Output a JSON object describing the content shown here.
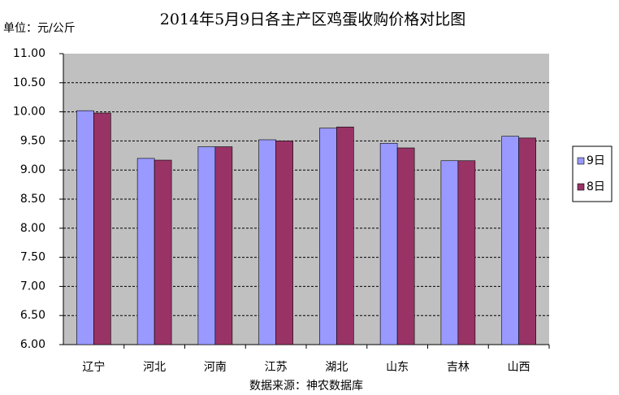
{
  "chart_data": {
    "type": "bar",
    "title": "2014年5月9日各主产区鸡蛋收购价格对比图",
    "unit_label": "单位：元/公斤",
    "source": "数据来源：神农数据库",
    "categories": [
      "辽宁",
      "河北",
      "河南",
      "江苏",
      "湖北",
      "山东",
      "吉林",
      "山西"
    ],
    "series": [
      {
        "name": "9日",
        "color": "#9999ff",
        "values": [
          10.02,
          9.2,
          9.4,
          9.52,
          9.72,
          9.46,
          9.16,
          9.58
        ]
      },
      {
        "name": "8日",
        "color": "#993366",
        "values": [
          9.98,
          9.17,
          9.4,
          9.5,
          9.74,
          9.38,
          9.16,
          9.55
        ]
      }
    ],
    "ylim": [
      6,
      11
    ],
    "yticks": [
      {
        "value": 6,
        "label": "6.00"
      },
      {
        "value": 6.5,
        "label": "6.50"
      },
      {
        "value": 7,
        "label": "7.00"
      },
      {
        "value": 7.5,
        "label": "7.50"
      },
      {
        "value": 8,
        "label": "8.00"
      },
      {
        "value": 8.5,
        "label": "8.50"
      },
      {
        "value": 9,
        "label": "9.00"
      },
      {
        "value": 9.5,
        "label": "9.50"
      },
      {
        "value": 10,
        "label": "10.00"
      },
      {
        "value": 10.5,
        "label": "10.50"
      },
      {
        "value": 11,
        "label": "11.00"
      }
    ],
    "grid": true,
    "legend": "right"
  }
}
